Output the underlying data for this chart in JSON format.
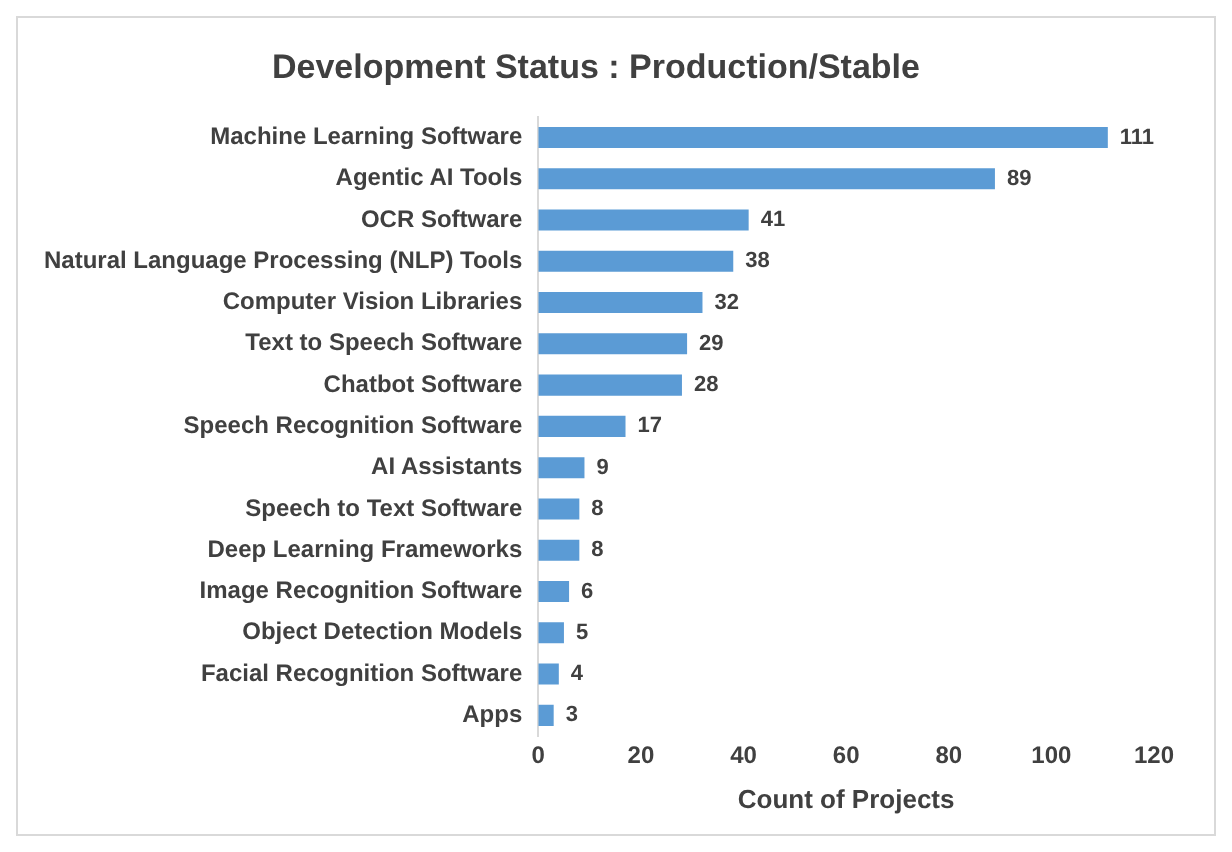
{
  "chart_data": {
    "type": "bar",
    "orientation": "horizontal",
    "title": "Development Status : Production/Stable",
    "xlabel": "Count of Projects",
    "categories": [
      "Machine Learning Software",
      "Agentic AI Tools",
      "OCR Software",
      "Natural Language Processing (NLP) Tools",
      "Computer Vision Libraries",
      "Text to Speech Software",
      "Chatbot Software",
      "Speech Recognition Software",
      "AI Assistants",
      "Speech to Text Software",
      "Deep Learning Frameworks",
      "Image Recognition Software",
      "Object Detection Models",
      "Facial Recognition Software",
      "Apps"
    ],
    "values": [
      111,
      89,
      41,
      38,
      32,
      29,
      28,
      17,
      9,
      8,
      8,
      6,
      5,
      4,
      3
    ],
    "color": "#5b9bd5",
    "xlim": [
      0,
      120
    ],
    "xticks": [
      0,
      20,
      40,
      60,
      80,
      100,
      120
    ],
    "grid": false,
    "data_labels": true,
    "legend": false
  }
}
